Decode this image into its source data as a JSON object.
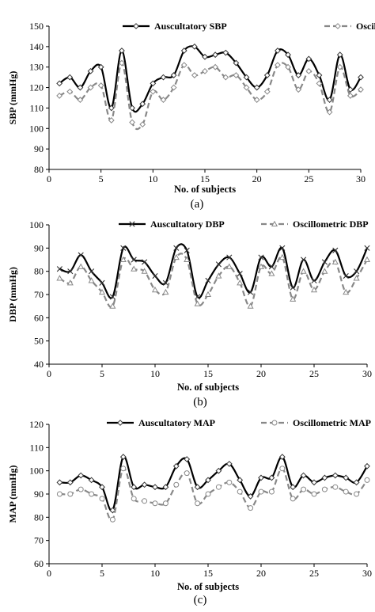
{
  "chart_data": [
    {
      "type": "line",
      "panel_label": "(a)",
      "xlabel": "No. of subjects",
      "ylabel": "SBP (mmHg)",
      "xlim": [
        0,
        30
      ],
      "ylim": [
        80,
        150
      ],
      "x_ticks": [
        0,
        5,
        10,
        15,
        20,
        25,
        30
      ],
      "y_ticks": [
        80,
        90,
        100,
        110,
        120,
        130,
        140,
        150
      ],
      "grid": false,
      "legend_position": "top-right",
      "x": [
        1,
        2,
        3,
        4,
        5,
        6,
        7,
        8,
        9,
        10,
        11,
        12,
        13,
        14,
        15,
        16,
        17,
        18,
        19,
        20,
        21,
        22,
        23,
        24,
        25,
        26,
        27,
        28,
        29,
        30
      ],
      "series": [
        {
          "name": "Auscultatory SBP",
          "style": "solid",
          "marker": "diamond",
          "color": "#000000",
          "values": [
            122,
            125,
            120,
            128,
            130,
            110,
            138,
            110,
            112,
            122,
            125,
            126,
            138,
            140,
            135,
            136,
            137,
            132,
            125,
            120,
            126,
            138,
            136,
            126,
            134,
            126,
            114,
            136,
            119,
            125
          ]
        },
        {
          "name": "Oscillometric SBP",
          "style": "dashed",
          "marker": "diamond",
          "color": "#888888",
          "values": [
            116,
            118,
            114,
            120,
            121,
            104,
            132,
            103,
            102,
            118,
            114,
            120,
            131,
            126,
            128,
            130,
            125,
            126,
            120,
            114,
            118,
            131,
            130,
            119,
            128,
            122,
            108,
            130,
            116,
            119
          ]
        }
      ]
    },
    {
      "type": "line",
      "panel_label": "(b)",
      "xlabel": "No. of subjects",
      "ylabel": "DBP (mmHg)",
      "xlim": [
        0,
        30
      ],
      "ylim": [
        40,
        100
      ],
      "x_ticks": [
        0,
        5,
        10,
        15,
        20,
        25,
        30
      ],
      "y_ticks": [
        40,
        50,
        60,
        70,
        80,
        90,
        100
      ],
      "grid": false,
      "legend_position": "top-right",
      "x": [
        1,
        2,
        3,
        4,
        5,
        6,
        7,
        8,
        9,
        10,
        11,
        12,
        13,
        14,
        15,
        16,
        17,
        18,
        19,
        20,
        21,
        22,
        23,
        24,
        25,
        26,
        27,
        28,
        29,
        30
      ],
      "series": [
        {
          "name": "Auscultatory DBP",
          "style": "solid",
          "marker": "x",
          "color": "#000000",
          "values": [
            81,
            80,
            87,
            80,
            75,
            69,
            90,
            85,
            84,
            78,
            75,
            90,
            89,
            69,
            76,
            83,
            86,
            79,
            71,
            86,
            82,
            90,
            73,
            85,
            76,
            84,
            89,
            78,
            80,
            90
          ]
        },
        {
          "name": "Oscillometric DBP",
          "style": "dashed",
          "marker": "triangle",
          "color": "#888888",
          "values": [
            77,
            75,
            82,
            76,
            71,
            65,
            85,
            81,
            80,
            72,
            71,
            86,
            85,
            66,
            70,
            78,
            82,
            75,
            65,
            82,
            79,
            86,
            68,
            80,
            72,
            80,
            84,
            71,
            77,
            85
          ]
        }
      ]
    },
    {
      "type": "line",
      "panel_label": "(c)",
      "xlabel": "No. of subjects",
      "ylabel": "MAP (mmHg)",
      "xlim": [
        0,
        30
      ],
      "ylim": [
        60,
        120
      ],
      "x_ticks": [
        0,
        5,
        10,
        15,
        20,
        25,
        30
      ],
      "y_ticks": [
        60,
        70,
        80,
        90,
        100,
        110,
        120
      ],
      "grid": false,
      "legend_position": "top-right",
      "x": [
        1,
        2,
        3,
        4,
        5,
        6,
        7,
        8,
        9,
        10,
        11,
        12,
        13,
        14,
        15,
        16,
        17,
        18,
        19,
        20,
        21,
        22,
        23,
        24,
        25,
        26,
        27,
        28,
        29,
        30
      ],
      "series": [
        {
          "name": "Auscultatory MAP",
          "style": "solid",
          "marker": "diamond",
          "color": "#000000",
          "values": [
            95,
            95,
            98,
            96,
            93,
            83,
            106,
            93,
            94,
            93,
            93,
            102,
            105,
            93,
            96,
            100,
            103,
            96,
            89,
            97,
            97,
            106,
            93,
            98,
            95,
            97,
            98,
            97,
            95,
            102
          ]
        },
        {
          "name": "Oscillometric MAP",
          "style": "dashed",
          "marker": "circle",
          "color": "#888888",
          "values": [
            90,
            90,
            92,
            90,
            88,
            79,
            101,
            88,
            87,
            86,
            86,
            94,
            99,
            86,
            90,
            93,
            95,
            91,
            84,
            91,
            91,
            101,
            88,
            92,
            90,
            92,
            93,
            91,
            90,
            96
          ]
        }
      ]
    }
  ]
}
